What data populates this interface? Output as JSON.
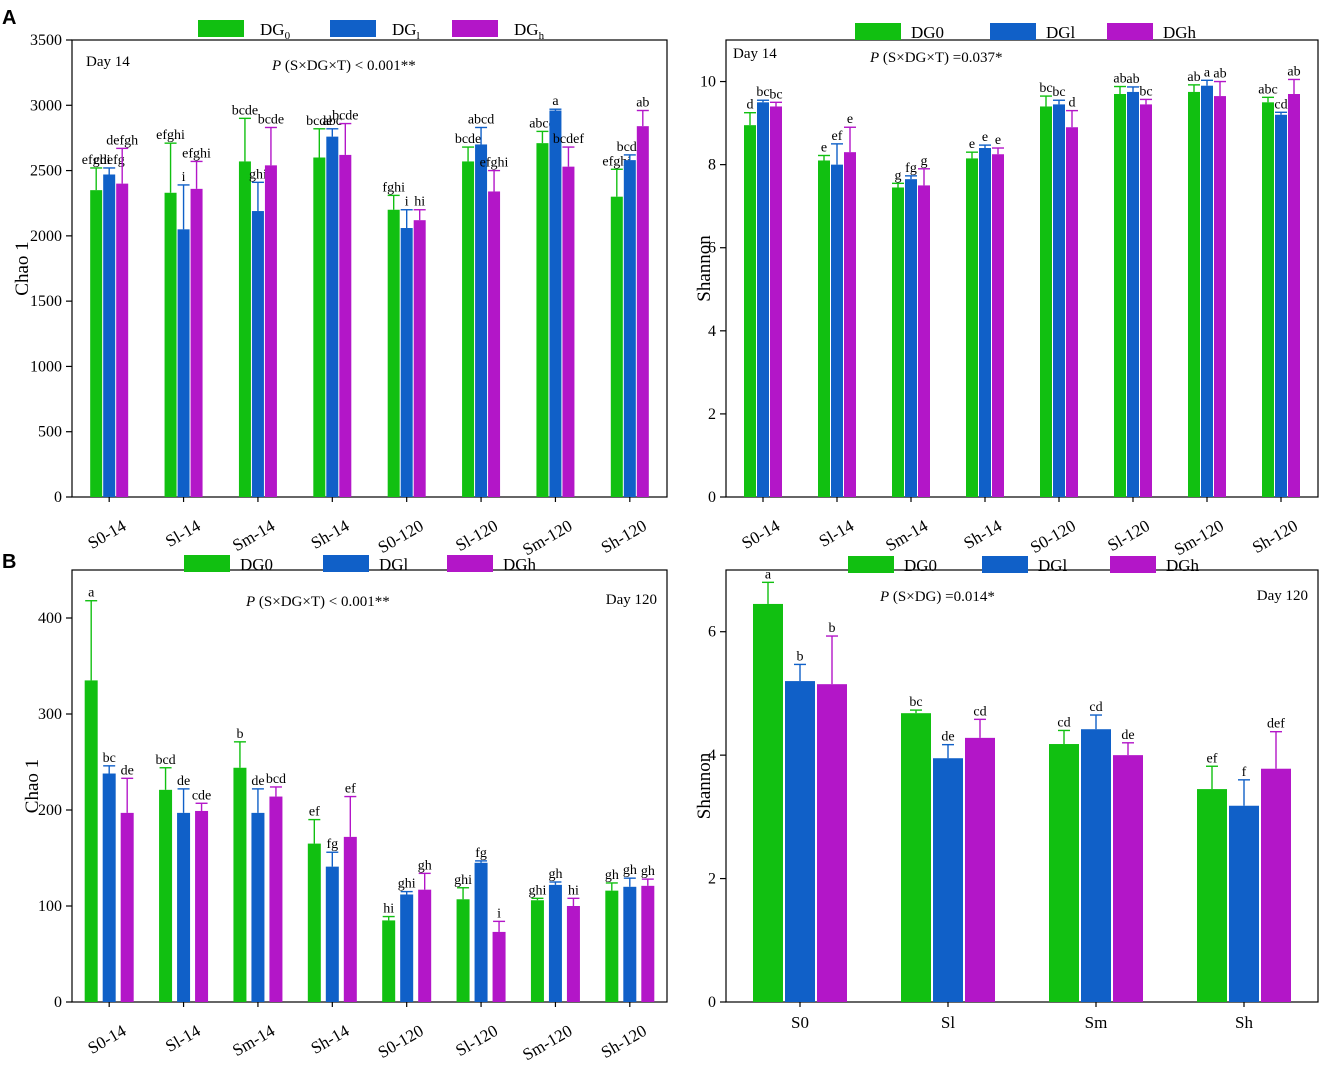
{
  "colors": {
    "DG0": "#11c011",
    "DGl": "#1060c8",
    "DGh": "#b316c8",
    "axis": "#000000"
  },
  "panel_labels": {
    "a": "A",
    "b": "B"
  },
  "chart_data": [
    {
      "id": "A-left",
      "type": "bar",
      "ylabel": "Chao 1",
      "ylim": [
        0,
        3500
      ],
      "yticks": [
        0,
        500,
        1000,
        1500,
        2000,
        2500,
        3000,
        3500
      ],
      "note": "Day  14",
      "stat": "P (S×DG×T) < 0.001**",
      "legend": [
        "DG0",
        "DGl",
        "DGh"
      ],
      "legend_style": "subscript",
      "categories": [
        "S0-14",
        "Sl-14",
        "Sm-14",
        "Sh-14",
        "S0-120",
        "Sl-120",
        "Sm-120",
        "Sh-120"
      ],
      "series": [
        {
          "name": "DG0",
          "values": [
            2350,
            2330,
            2570,
            2600,
            2200,
            2570,
            2710,
            2300
          ],
          "errors": [
            170,
            380,
            330,
            220,
            110,
            110,
            90,
            210
          ],
          "labels": [
            "efghi",
            "efghi",
            "bcde",
            "bcde",
            "fghi",
            "bcde",
            "abcd",
            "efghi"
          ]
        },
        {
          "name": "DGl",
          "values": [
            2470,
            2050,
            2190,
            2760,
            2060,
            2700,
            2960,
            2580
          ],
          "errors": [
            50,
            340,
            220,
            60,
            140,
            130,
            10,
            40
          ],
          "labels": [
            "cdefg",
            "i",
            "ghi",
            "abc",
            "i",
            "abcd",
            "a",
            "bcde"
          ]
        },
        {
          "name": "DGh",
          "values": [
            2400,
            2360,
            2540,
            2620,
            2120,
            2340,
            2530,
            2840
          ],
          "errors": [
            270,
            210,
            290,
            240,
            80,
            160,
            150,
            120
          ],
          "labels": [
            "defgh",
            "efghi",
            "bcde",
            "bcde",
            "hi",
            "efghi",
            "bcdef",
            "ab"
          ]
        }
      ]
    },
    {
      "id": "A-right",
      "type": "bar",
      "ylabel": "Shannon",
      "ylim": [
        0,
        11
      ],
      "yticks": [
        0,
        2,
        4,
        6,
        8,
        10
      ],
      "note": "Day  14",
      "stat": "P (S×DG×T) =0.037*",
      "legend": [
        "DG0",
        "DGl",
        "DGh"
      ],
      "legend_style": "plain",
      "categories": [
        "S0-14",
        "Sl-14",
        "Sm-14",
        "Sh-14",
        "S0-120",
        "Sl-120",
        "Sm-120",
        "Sh-120"
      ],
      "series": [
        {
          "name": "DG0",
          "values": [
            8.95,
            8.1,
            7.45,
            8.15,
            9.4,
            9.7,
            9.75,
            9.5
          ],
          "errors": [
            0.3,
            0.12,
            0.1,
            0.15,
            0.25,
            0.18,
            0.17,
            0.12
          ],
          "labels": [
            "d",
            "e",
            "g",
            "e",
            "bc",
            "ab",
            "ab",
            "abc"
          ]
        },
        {
          "name": "DGl",
          "values": [
            9.5,
            8.0,
            7.65,
            8.4,
            9.45,
            9.75,
            9.9,
            9.2
          ],
          "errors": [
            0.05,
            0.5,
            0.08,
            0.07,
            0.1,
            0.12,
            0.13,
            0.06
          ],
          "labels": [
            "bc",
            "ef",
            "fg",
            "e",
            "bc",
            "ab",
            "a",
            "cd"
          ]
        },
        {
          "name": "DGh",
          "values": [
            9.4,
            8.3,
            7.5,
            8.25,
            8.9,
            9.45,
            9.65,
            9.7
          ],
          "errors": [
            0.1,
            0.6,
            0.4,
            0.15,
            0.4,
            0.12,
            0.35,
            0.35
          ],
          "labels": [
            "bc",
            "e",
            "g",
            "e",
            "d",
            "bc",
            "ab",
            "ab"
          ]
        }
      ]
    },
    {
      "id": "B-left",
      "type": "bar",
      "ylabel": "Chao 1",
      "ylim": [
        0,
        450
      ],
      "yticks": [
        0,
        100,
        200,
        300,
        400
      ],
      "note": "Day  120",
      "stat": "P (S×DG×T) < 0.001**",
      "legend": [
        "DG0",
        "DGl",
        "DGh"
      ],
      "legend_style": "plain",
      "categories": [
        "S0-14",
        "Sl-14",
        "Sm-14",
        "Sh-14",
        "S0-120",
        "Sl-120",
        "Sm-120",
        "Sh-120"
      ],
      "series": [
        {
          "name": "DG0",
          "values": [
            335,
            221,
            244,
            165,
            85,
            107,
            106,
            116
          ],
          "errors": [
            83,
            23,
            27,
            25,
            4,
            12,
            2,
            8
          ],
          "labels": [
            "a",
            "bcd",
            "b",
            "ef",
            "hi",
            "ghi",
            "ghi",
            "gh"
          ]
        },
        {
          "name": "DGl",
          "values": [
            238,
            197,
            197,
            141,
            112,
            145,
            122,
            120
          ],
          "errors": [
            8,
            25,
            25,
            15,
            3,
            2,
            3,
            9
          ],
          "labels": [
            "bc",
            "de",
            "de",
            "fg",
            "ghi",
            "fg",
            "gh",
            "gh"
          ]
        },
        {
          "name": "DGh",
          "values": [
            197,
            199,
            214,
            172,
            117,
            73,
            100,
            121
          ],
          "errors": [
            36,
            8,
            10,
            42,
            17,
            11,
            8,
            7
          ],
          "labels": [
            "de",
            "cde",
            "bcd",
            "ef",
            "gh",
            "i",
            "hi",
            "gh"
          ]
        }
      ]
    },
    {
      "id": "B-right",
      "type": "bar",
      "ylabel": "Shannon",
      "ylim": [
        0,
        7
      ],
      "yticks": [
        0,
        2,
        4,
        6
      ],
      "note": "Day  120",
      "stat": "P (S×DG) =0.014*",
      "legend": [
        "DG0",
        "DGl",
        "DGh"
      ],
      "legend_style": "plain",
      "categories": [
        "S0",
        "Sl",
        "Sm",
        "Sh"
      ],
      "series": [
        {
          "name": "DG0",
          "values": [
            6.45,
            4.68,
            4.18,
            3.45
          ],
          "errors": [
            0.35,
            0.05,
            0.22,
            0.37
          ],
          "labels": [
            "a",
            "bc",
            "cd",
            "ef"
          ]
        },
        {
          "name": "DGl",
          "values": [
            5.2,
            3.95,
            4.42,
            3.18
          ],
          "errors": [
            0.27,
            0.22,
            0.23,
            0.42
          ],
          "labels": [
            "b",
            "de",
            "cd",
            "f"
          ]
        },
        {
          "name": "DGh",
          "values": [
            5.15,
            4.28,
            4.0,
            3.78
          ],
          "errors": [
            0.78,
            0.3,
            0.2,
            0.6
          ],
          "labels": [
            "b",
            "cd",
            "de",
            "def"
          ]
        }
      ]
    }
  ]
}
